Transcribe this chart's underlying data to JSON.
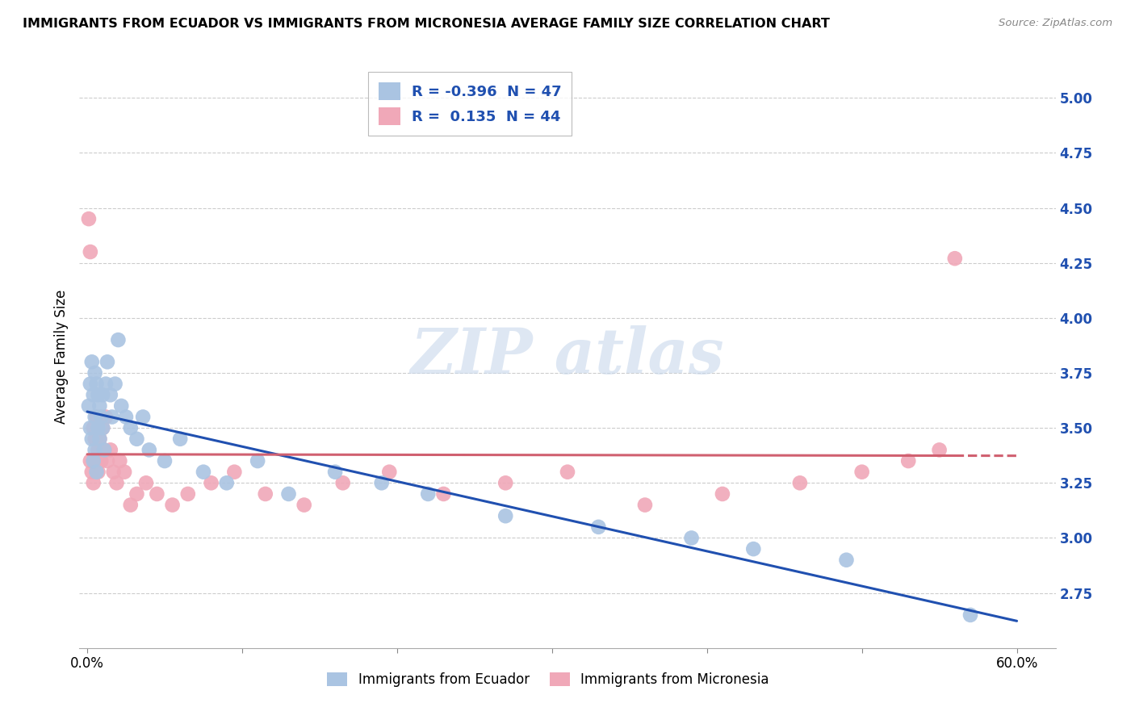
{
  "title": "IMMIGRANTS FROM ECUADOR VS IMMIGRANTS FROM MICRONESIA AVERAGE FAMILY SIZE CORRELATION CHART",
  "source": "Source: ZipAtlas.com",
  "ylabel": "Average Family Size",
  "ecuador_R": -0.396,
  "ecuador_N": 47,
  "micronesia_R": 0.135,
  "micronesia_N": 44,
  "ecuador_color": "#aac4e2",
  "micronesia_color": "#f0a8b8",
  "ecuador_line_color": "#2050b0",
  "micronesia_line_color": "#d06070",
  "ecuador_x": [
    0.001,
    0.002,
    0.002,
    0.003,
    0.003,
    0.004,
    0.004,
    0.005,
    0.005,
    0.005,
    0.006,
    0.006,
    0.007,
    0.007,
    0.008,
    0.008,
    0.009,
    0.01,
    0.01,
    0.011,
    0.012,
    0.013,
    0.015,
    0.016,
    0.018,
    0.02,
    0.022,
    0.025,
    0.028,
    0.032,
    0.036,
    0.04,
    0.05,
    0.06,
    0.075,
    0.09,
    0.11,
    0.13,
    0.16,
    0.19,
    0.22,
    0.27,
    0.33,
    0.39,
    0.43,
    0.49,
    0.57
  ],
  "ecuador_y": [
    3.6,
    3.7,
    3.5,
    3.8,
    3.45,
    3.65,
    3.35,
    3.75,
    3.55,
    3.4,
    3.7,
    3.3,
    3.65,
    3.5,
    3.6,
    3.45,
    3.55,
    3.65,
    3.5,
    3.4,
    3.7,
    3.8,
    3.65,
    3.55,
    3.7,
    3.9,
    3.6,
    3.55,
    3.5,
    3.45,
    3.55,
    3.4,
    3.35,
    3.45,
    3.3,
    3.25,
    3.35,
    3.2,
    3.3,
    3.25,
    3.2,
    3.1,
    3.05,
    3.0,
    2.95,
    2.9,
    2.65
  ],
  "micronesia_x": [
    0.001,
    0.002,
    0.002,
    0.003,
    0.004,
    0.004,
    0.005,
    0.005,
    0.006,
    0.007,
    0.007,
    0.008,
    0.009,
    0.01,
    0.011,
    0.012,
    0.013,
    0.015,
    0.017,
    0.019,
    0.021,
    0.024,
    0.028,
    0.032,
    0.038,
    0.045,
    0.055,
    0.065,
    0.08,
    0.095,
    0.115,
    0.14,
    0.165,
    0.195,
    0.23,
    0.27,
    0.31,
    0.36,
    0.41,
    0.46,
    0.5,
    0.53,
    0.55,
    0.56
  ],
  "micronesia_y": [
    4.45,
    4.3,
    3.35,
    3.3,
    3.5,
    3.25,
    3.45,
    3.35,
    3.55,
    3.4,
    3.3,
    3.45,
    3.35,
    3.5,
    3.4,
    3.55,
    3.35,
    3.4,
    3.3,
    3.25,
    3.35,
    3.3,
    3.15,
    3.2,
    3.25,
    3.2,
    3.15,
    3.2,
    3.25,
    3.3,
    3.2,
    3.15,
    3.25,
    3.3,
    3.2,
    3.25,
    3.3,
    3.15,
    3.2,
    3.25,
    3.3,
    3.35,
    3.4,
    4.27
  ],
  "ylim": [
    2.5,
    5.15
  ],
  "xlim": [
    -0.005,
    0.625
  ],
  "yticks": [
    2.75,
    3.0,
    3.25,
    3.5,
    3.75,
    4.0,
    4.25,
    4.5,
    4.75,
    5.0
  ],
  "xticks": [
    0.0,
    0.1,
    0.2,
    0.3,
    0.4,
    0.5,
    0.6
  ]
}
